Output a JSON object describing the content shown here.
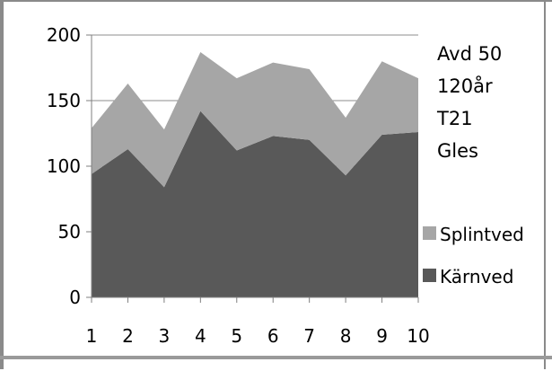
{
  "chart_data": {
    "type": "area",
    "stacked": true,
    "x": [
      1,
      2,
      3,
      4,
      5,
      6,
      7,
      8,
      9,
      10
    ],
    "series": [
      {
        "name": "Kärnved",
        "values": [
          94,
          113,
          84,
          142,
          112,
          123,
          120,
          93,
          124,
          126
        ],
        "color": "#595959"
      },
      {
        "name": "Splintved",
        "values": [
          35,
          50,
          44,
          45,
          55,
          56,
          54,
          44,
          56,
          41
        ],
        "color": "#a6a6a6"
      }
    ],
    "ylim": [
      0,
      200
    ],
    "yticks": [
      "0",
      "50",
      "100",
      "150",
      "200"
    ],
    "xticks": [
      "1",
      "2",
      "3",
      "4",
      "5",
      "6",
      "7",
      "8",
      "9",
      "10"
    ],
    "grid": true,
    "legend_placement": "right",
    "annotations": [
      "Avd 50",
      "120år",
      "T21",
      "Gles"
    ],
    "title": "",
    "xlabel": "",
    "ylabel": ""
  }
}
